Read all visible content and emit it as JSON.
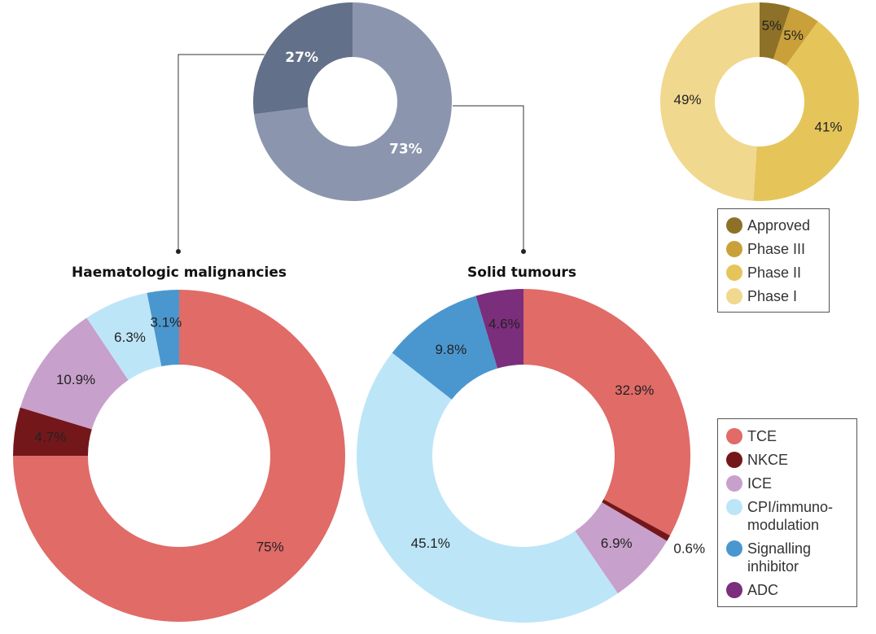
{
  "chart_data": [
    {
      "type": "pie",
      "variant": "donut",
      "slices": [
        {
          "label": "73%",
          "value": 73,
          "color": "#8b96ae"
        },
        {
          "label": "27%",
          "value": 27,
          "color": "#637089"
        }
      ]
    },
    {
      "type": "pie",
      "variant": "donut",
      "legend_placement": "bottom",
      "slices": [
        {
          "name": "Approved",
          "label": "5%",
          "value": 5,
          "color": "#8e7128"
        },
        {
          "name": "Phase III",
          "label": "5%",
          "value": 5,
          "color": "#c9a03a"
        },
        {
          "name": "Phase II",
          "label": "41%",
          "value": 41,
          "color": "#e5c55a"
        },
        {
          "name": "Phase I",
          "label": "49%",
          "value": 49,
          "color": "#f1d88f"
        }
      ]
    },
    {
      "type": "pie",
      "variant": "donut",
      "title": "Haematologic malignancies",
      "slices": [
        {
          "name": "TCE",
          "label": "75%",
          "value": 75,
          "color": "#e06b67"
        },
        {
          "name": "NKCE",
          "label": "4.7%",
          "value": 4.7,
          "color": "#74171a"
        },
        {
          "name": "ICE",
          "label": "10.9%",
          "value": 10.9,
          "color": "#c8a0cc"
        },
        {
          "name": "CPI/immuno-modulation",
          "label": "6.3%",
          "value": 6.3,
          "color": "#bde5f8"
        },
        {
          "name": "Signalling inhibitor",
          "label": "3.1%",
          "value": 3.1,
          "color": "#4a97cf"
        }
      ]
    },
    {
      "type": "pie",
      "variant": "donut",
      "title": "Solid tumours",
      "legend_placement": "right",
      "slices": [
        {
          "name": "TCE",
          "label": "32.9%",
          "value": 32.9,
          "color": "#e06b67"
        },
        {
          "name": "NKCE",
          "label": "0.6%",
          "value": 0.6,
          "color": "#74171a"
        },
        {
          "name": "ICE",
          "label": "6.9%",
          "value": 6.9,
          "color": "#c8a0cc"
        },
        {
          "name": "CPI/immuno-modulation",
          "label": "45.1%",
          "value": 45.1,
          "color": "#bde5f8"
        },
        {
          "name": "Signalling inhibitor",
          "label": "9.8%",
          "value": 9.8,
          "color": "#4a97cf"
        },
        {
          "name": "ADC",
          "label": "4.6%",
          "value": 4.6,
          "color": "#7b2e7c"
        }
      ]
    }
  ],
  "phase_legend": [
    {
      "label": "Approved",
      "color": "#8e7128"
    },
    {
      "label": "Phase III",
      "color": "#c9a03a"
    },
    {
      "label": "Phase II",
      "color": "#e5c55a"
    },
    {
      "label": "Phase I",
      "color": "#f1d88f"
    }
  ],
  "modality_legend": [
    {
      "lines": [
        "TCE"
      ],
      "color": "#e06b67"
    },
    {
      "lines": [
        "NKCE"
      ],
      "color": "#74171a"
    },
    {
      "lines": [
        "ICE"
      ],
      "color": "#c8a0cc"
    },
    {
      "lines": [
        "CPI/immuno-",
        "modulation"
      ],
      "color": "#bde5f8"
    },
    {
      "lines": [
        "Signalling",
        "inhibitor"
      ],
      "color": "#4a97cf"
    },
    {
      "lines": [
        "ADC"
      ],
      "color": "#7b2e7c"
    }
  ]
}
